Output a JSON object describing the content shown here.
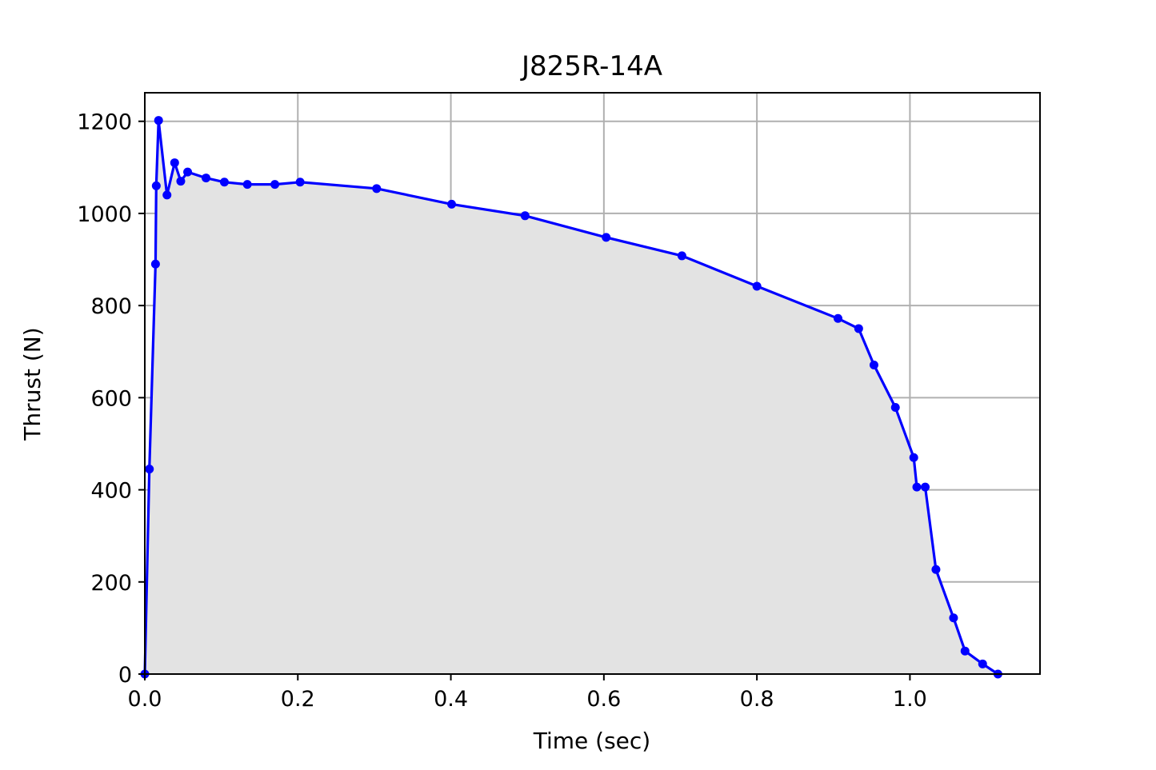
{
  "chart_data": {
    "type": "line",
    "title": "J825R-14A",
    "xlabel": "Time (sec)",
    "ylabel": "Thrust (N)",
    "xlim": [
      0,
      1.17
    ],
    "ylim": [
      0,
      1262
    ],
    "xticks": [
      {
        "value": 0.0,
        "label": "0.0"
      },
      {
        "value": 0.2,
        "label": "0.2"
      },
      {
        "value": 0.4,
        "label": "0.4"
      },
      {
        "value": 0.6,
        "label": "0.6"
      },
      {
        "value": 0.8,
        "label": "0.8"
      },
      {
        "value": 1.0,
        "label": "1.0"
      }
    ],
    "yticks": [
      {
        "value": 0,
        "label": "0"
      },
      {
        "value": 200,
        "label": "200"
      },
      {
        "value": 400,
        "label": "400"
      },
      {
        "value": 600,
        "label": "600"
      },
      {
        "value": 800,
        "label": "800"
      },
      {
        "value": 1000,
        "label": "1000"
      },
      {
        "value": 1200,
        "label": "1200"
      }
    ],
    "grid": true,
    "fill_under": true,
    "colors": {
      "line": "#0000ff",
      "fill": "#e3e3e3",
      "grid": "#b0b0b0",
      "axes": "#000000"
    },
    "series": [
      {
        "x": [
          0.0,
          0.006,
          0.014,
          0.015,
          0.018,
          0.029,
          0.039,
          0.047,
          0.056,
          0.08,
          0.104,
          0.134,
          0.17,
          0.203,
          0.303,
          0.401,
          0.497,
          0.603,
          0.702,
          0.8,
          0.906,
          0.933,
          0.953,
          0.981,
          1.005,
          1.009,
          1.02,
          1.034,
          1.057,
          1.072,
          1.095,
          1.115
        ],
        "y": [
          0,
          445,
          890,
          1060,
          1202,
          1040,
          1110,
          1070,
          1090,
          1077,
          1068,
          1063,
          1063,
          1068,
          1054,
          1020,
          995,
          948,
          908,
          842,
          772,
          750,
          671,
          579,
          470,
          406,
          406,
          227,
          122,
          50,
          22,
          0
        ]
      }
    ]
  }
}
